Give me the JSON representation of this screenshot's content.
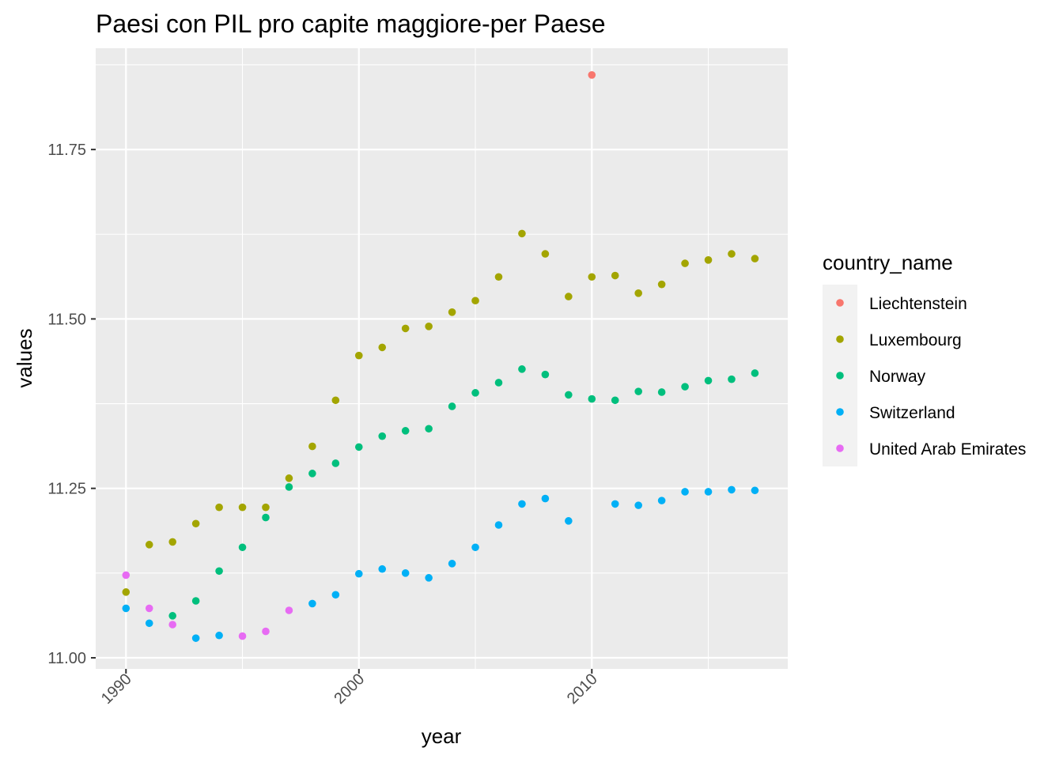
{
  "chart_data": {
    "type": "scatter",
    "title": "Paesi con PIL pro capite maggiore-per Paese",
    "xlabel": "year",
    "ylabel": "values",
    "xlim": [
      1988.7,
      2018.4
    ],
    "ylim": [
      10.985,
      11.885
    ],
    "x_ticks": [
      1990,
      2000,
      2010
    ],
    "x_tick_labels": [
      "1990",
      "2000",
      "2010"
    ],
    "y_ticks": [
      11.0,
      11.25,
      11.5,
      11.75
    ],
    "y_tick_labels": [
      "11.00",
      "11.25",
      "11.50",
      "11.75"
    ],
    "grid": true,
    "legend": {
      "title": "country_name",
      "position": "right"
    },
    "series": [
      {
        "name": "Liechtenstein",
        "color": "#F8766D",
        "points": [
          [
            2010,
            11.86
          ]
        ]
      },
      {
        "name": "Luxembourg",
        "color": "#A3A500",
        "points": [
          [
            1990,
            11.097
          ],
          [
            1991,
            11.167
          ],
          [
            1992,
            11.171
          ],
          [
            1993,
            11.198
          ],
          [
            1994,
            11.222
          ],
          [
            1995,
            11.222
          ],
          [
            1996,
            11.222
          ],
          [
            1997,
            11.265
          ],
          [
            1998,
            11.312
          ],
          [
            1999,
            11.38
          ],
          [
            2000,
            11.446
          ],
          [
            2001,
            11.458
          ],
          [
            2002,
            11.486
          ],
          [
            2003,
            11.489
          ],
          [
            2004,
            11.51
          ],
          [
            2005,
            11.527
          ],
          [
            2006,
            11.562
          ],
          [
            2007,
            11.626
          ],
          [
            2008,
            11.596
          ],
          [
            2009,
            11.533
          ],
          [
            2010,
            11.562
          ],
          [
            2011,
            11.564
          ],
          [
            2012,
            11.538
          ],
          [
            2013,
            11.551
          ],
          [
            2014,
            11.582
          ],
          [
            2015,
            11.587
          ],
          [
            2016,
            11.596
          ],
          [
            2017,
            11.589
          ]
        ]
      },
      {
        "name": "Norway",
        "color": "#00BF7D",
        "points": [
          [
            1992,
            11.062
          ],
          [
            1993,
            11.084
          ],
          [
            1994,
            11.128
          ],
          [
            1995,
            11.163
          ],
          [
            1996,
            11.207
          ],
          [
            1997,
            11.252
          ],
          [
            1998,
            11.272
          ],
          [
            1999,
            11.287
          ],
          [
            2000,
            11.311
          ],
          [
            2001,
            11.327
          ],
          [
            2002,
            11.335
          ],
          [
            2003,
            11.338
          ],
          [
            2004,
            11.371
          ],
          [
            2005,
            11.391
          ],
          [
            2006,
            11.406
          ],
          [
            2007,
            11.426
          ],
          [
            2008,
            11.418
          ],
          [
            2009,
            11.388
          ],
          [
            2010,
            11.382
          ],
          [
            2011,
            11.38
          ],
          [
            2012,
            11.393
          ],
          [
            2013,
            11.392
          ],
          [
            2014,
            11.4
          ],
          [
            2015,
            11.409
          ],
          [
            2016,
            11.411
          ],
          [
            2017,
            11.42
          ]
        ]
      },
      {
        "name": "Switzerland",
        "color": "#00B0F6",
        "points": [
          [
            1990,
            11.073
          ],
          [
            1991,
            11.051
          ],
          [
            1993,
            11.029
          ],
          [
            1994,
            11.033
          ],
          [
            1998,
            11.08
          ],
          [
            1999,
            11.093
          ],
          [
            2000,
            11.124
          ],
          [
            2001,
            11.131
          ],
          [
            2002,
            11.125
          ],
          [
            2003,
            11.118
          ],
          [
            2004,
            11.139
          ],
          [
            2005,
            11.163
          ],
          [
            2006,
            11.196
          ],
          [
            2007,
            11.227
          ],
          [
            2008,
            11.235
          ],
          [
            2009,
            11.202
          ],
          [
            2011,
            11.227
          ],
          [
            2012,
            11.225
          ],
          [
            2013,
            11.232
          ],
          [
            2014,
            11.245
          ],
          [
            2015,
            11.245
          ],
          [
            2016,
            11.248
          ],
          [
            2017,
            11.247
          ]
        ]
      },
      {
        "name": "United Arab Emirates",
        "color": "#E76BF3",
        "points": [
          [
            1990,
            11.122
          ],
          [
            1991,
            11.073
          ],
          [
            1992,
            11.049
          ],
          [
            1995,
            11.032
          ],
          [
            1996,
            11.039
          ],
          [
            1997,
            11.07
          ]
        ]
      }
    ]
  }
}
